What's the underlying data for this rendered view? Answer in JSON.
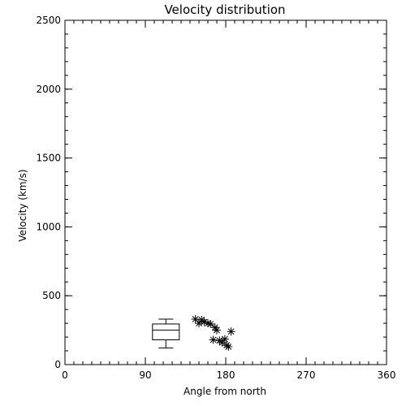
{
  "chart_data": {
    "type": "scatter",
    "title": "Velocity distribution",
    "xlabel": "Angle from north",
    "ylabel": "Velocity (km/s)",
    "xlim": [
      0,
      360
    ],
    "ylim": [
      0,
      2500
    ],
    "x_ticks": [
      0,
      90,
      180,
      270,
      360
    ],
    "y_ticks": [
      0,
      500,
      1000,
      1500,
      2000,
      2500
    ],
    "x_tick_labels": [
      "0",
      "90",
      "180",
      "270",
      "360"
    ],
    "y_tick_labels": [
      "0",
      "500",
      "1000",
      "1500",
      "2000",
      "2500"
    ],
    "minor_tick_step_x": 10,
    "minor_tick_step_y": 100,
    "grid": false,
    "boxplot": {
      "x": 113,
      "whisker_low": 120,
      "q1": 180,
      "median": 250,
      "q3": 295,
      "whisker_high": 330,
      "half_width": 15
    },
    "points": [
      {
        "x": 146,
        "y": 330
      },
      {
        "x": 150,
        "y": 300
      },
      {
        "x": 153,
        "y": 325
      },
      {
        "x": 156,
        "y": 310
      },
      {
        "x": 160,
        "y": 300
      },
      {
        "x": 163,
        "y": 295
      },
      {
        "x": 166,
        "y": 180
      },
      {
        "x": 168,
        "y": 270
      },
      {
        "x": 170,
        "y": 250
      },
      {
        "x": 173,
        "y": 175
      },
      {
        "x": 176,
        "y": 160
      },
      {
        "x": 179,
        "y": 185
      },
      {
        "x": 181,
        "y": 140
      },
      {
        "x": 183,
        "y": 130
      },
      {
        "x": 186,
        "y": 240
      }
    ]
  }
}
